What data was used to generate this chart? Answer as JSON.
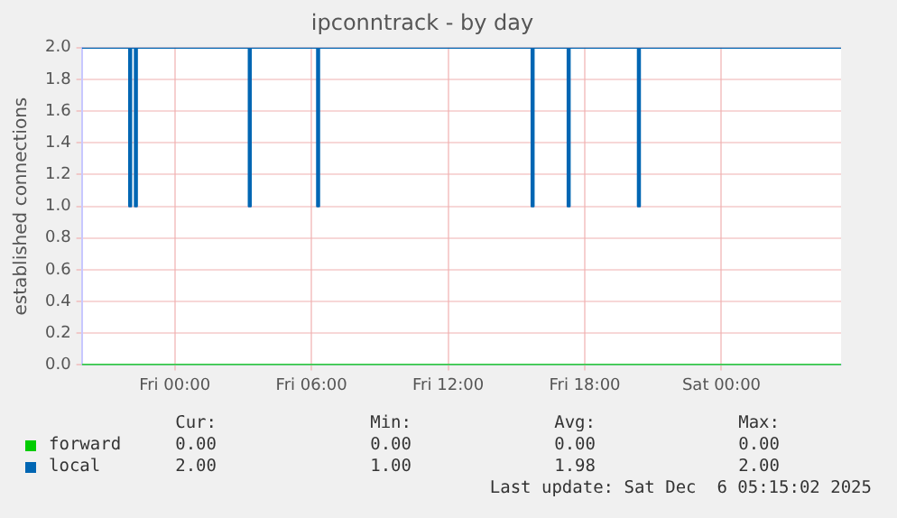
{
  "chart_data": {
    "type": "step",
    "title": "ipconntrack - by day",
    "ylabel": "established connections",
    "xlim": [
      "2025-12-04T19:55",
      "2025-12-06T05:15"
    ],
    "xticks": [
      {
        "value": "2025-12-05T00:00",
        "label": "Fri 00:00"
      },
      {
        "value": "2025-12-05T06:00",
        "label": "Fri 06:00"
      },
      {
        "value": "2025-12-05T12:00",
        "label": "Fri 12:00"
      },
      {
        "value": "2025-12-05T18:00",
        "label": "Fri 18:00"
      },
      {
        "value": "2025-12-06T00:00",
        "label": "Sat 00:00"
      }
    ],
    "ylim": [
      0,
      2
    ],
    "yticks": [
      {
        "value": 0,
        "label": "0.0"
      },
      {
        "value": 0.2,
        "label": "0.2"
      },
      {
        "value": 0.4,
        "label": "0.4"
      },
      {
        "value": 0.6,
        "label": "0.6"
      },
      {
        "value": 0.8,
        "label": "0.8"
      },
      {
        "value": 1,
        "label": "1.0"
      },
      {
        "value": 1.2,
        "label": "1.2"
      },
      {
        "value": 1.4,
        "label": "1.4"
      },
      {
        "value": 1.6,
        "label": "1.6"
      },
      {
        "value": 1.8,
        "label": "1.8"
      },
      {
        "value": 2,
        "label": "2.0"
      }
    ],
    "grid": true,
    "legend": "bottom",
    "marker": "none",
    "line_style": "solid",
    "series": [
      {
        "name": "forward",
        "color": "#00cc00",
        "x": [
          "2025-12-04T19:55",
          "2025-12-06T05:15"
        ],
        "values": [
          0,
          0
        ]
      },
      {
        "name": "local",
        "color": "#0066b3",
        "x": [
          "2025-12-04T19:55",
          "2025-12-04T22:00",
          "2025-12-04T22:05",
          "2025-12-04T22:15",
          "2025-12-04T22:20",
          "2025-12-05T03:15",
          "2025-12-05T03:20",
          "2025-12-05T06:15",
          "2025-12-05T06:20",
          "2025-12-05T15:40",
          "2025-12-05T15:45",
          "2025-12-05T17:15",
          "2025-12-05T17:20",
          "2025-12-05T20:20",
          "2025-12-05T20:25",
          "2025-12-06T05:15"
        ],
        "values": [
          2,
          1,
          2,
          1,
          2,
          1,
          2,
          1,
          2,
          1,
          2,
          1,
          2,
          1,
          2,
          2
        ]
      }
    ],
    "annotations": [
      "Cur:",
      "Min:",
      "Avg:",
      "Max:",
      "0.00",
      "0.00",
      "0.00",
      "0.00",
      "2.00",
      "1.00",
      "1.98",
      "2.00",
      "Last update: Sat Dec  6 05:15:02 2025"
    ]
  }
}
